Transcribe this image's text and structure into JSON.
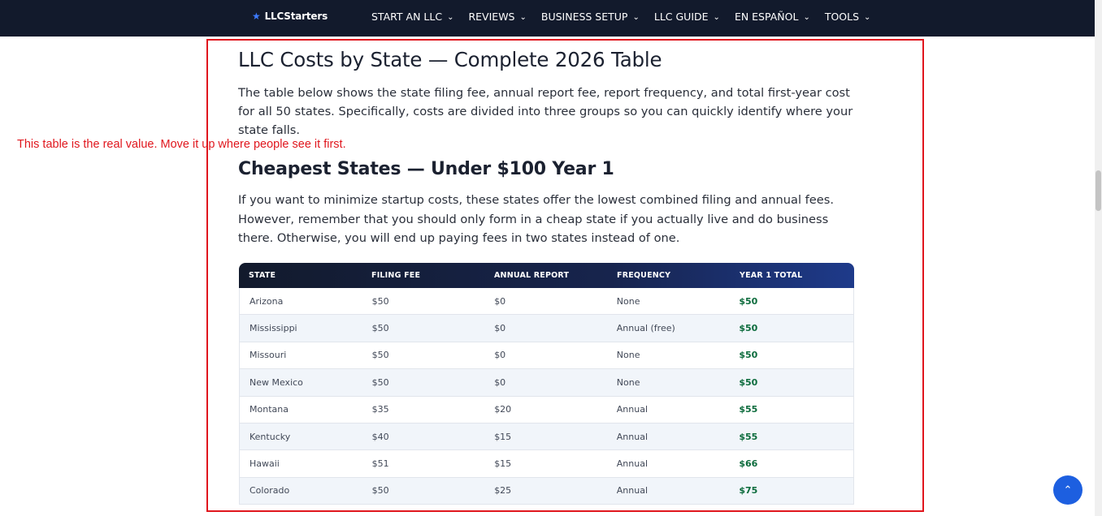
{
  "nav": {
    "logo": "LLCStarters",
    "items": [
      {
        "label": "START AN LLC"
      },
      {
        "label": "REVIEWS"
      },
      {
        "label": "BUSINESS SETUP"
      },
      {
        "label": "LLC GUIDE"
      },
      {
        "label": "EN ESPAÑOL"
      },
      {
        "label": "TOOLS"
      }
    ]
  },
  "article": {
    "title": "LLC Costs by State — Complete 2026 Table",
    "intro": "The table below shows the state filing fee, annual report fee, report frequency, and total first-year cost for all 50 states. Specifically, costs are divided into three groups so you can quickly identify where your state falls.",
    "section_title": "Cheapest States — Under $100 Year 1",
    "section_text": "If you want to minimize startup costs, these states offer the lowest combined filing and annual fees. However, remember that you should only form in a cheap state if you actually live and do business there. Otherwise, you will end up paying fees in two states instead of one."
  },
  "table": {
    "headers": [
      "STATE",
      "FILING FEE",
      "ANNUAL REPORT",
      "FREQUENCY",
      "YEAR 1 TOTAL"
    ],
    "rows": [
      [
        "Arizona",
        "$50",
        "$0",
        "None",
        "$50"
      ],
      [
        "Mississippi",
        "$50",
        "$0",
        "Annual (free)",
        "$50"
      ],
      [
        "Missouri",
        "$50",
        "$0",
        "None",
        "$50"
      ],
      [
        "New Mexico",
        "$50",
        "$0",
        "None",
        "$50"
      ],
      [
        "Montana",
        "$35",
        "$20",
        "Annual",
        "$55"
      ],
      [
        "Kentucky",
        "$40",
        "$15",
        "Annual",
        "$55"
      ],
      [
        "Hawaii",
        "$51",
        "$15",
        "Annual",
        "$66"
      ],
      [
        "Colorado",
        "$50",
        "$25",
        "Annual",
        "$75"
      ]
    ]
  },
  "annotation": {
    "text": "This table is the real value. Move it up where people see it first.",
    "color": "#e0161d"
  },
  "icons": {
    "logo_star": "★",
    "chevron": "⌄",
    "back_to_top": "⌃"
  }
}
